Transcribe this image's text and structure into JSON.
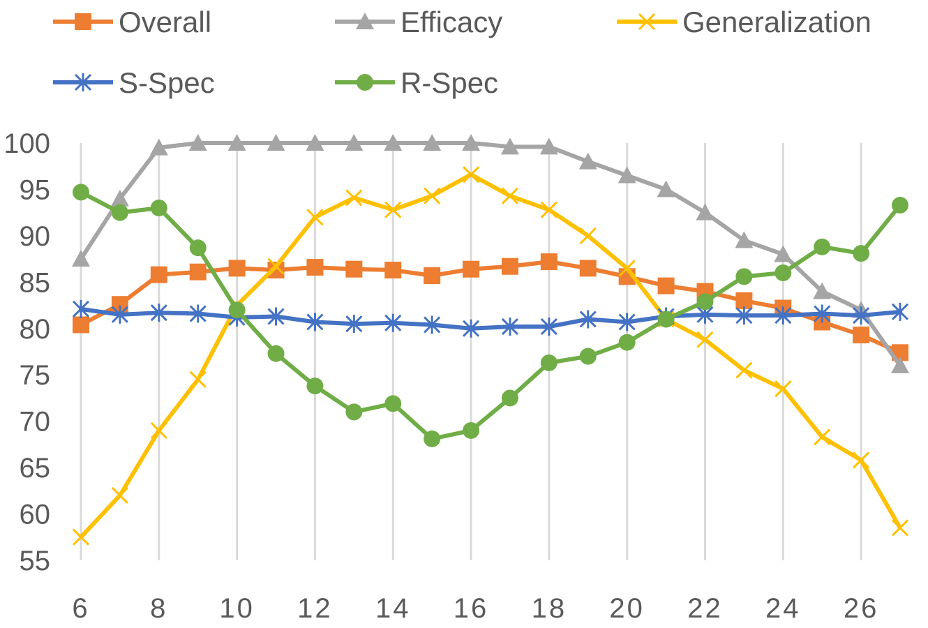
{
  "chart_data": {
    "type": "line",
    "title": "",
    "xlabel": "",
    "ylabel": "",
    "x": [
      6,
      7,
      8,
      9,
      10,
      11,
      12,
      13,
      14,
      15,
      16,
      17,
      18,
      19,
      20,
      21,
      22,
      23,
      24,
      25,
      26,
      27
    ],
    "x_tick_labels": [
      "6",
      "8",
      "10",
      "12",
      "14",
      "16",
      "18",
      "20",
      "22",
      "24",
      "26"
    ],
    "y_tick_labels": [
      "55",
      "60",
      "65",
      "70",
      "75",
      "80",
      "85",
      "90",
      "95",
      "100"
    ],
    "xlim": [
      6,
      27
    ],
    "ylim": [
      55,
      100
    ],
    "grid": "vertical",
    "legend_position": "top",
    "series": [
      {
        "name": "Overall",
        "color": "#ED7D31",
        "marker": "square",
        "values": [
          80.4,
          82.6,
          85.8,
          86.1,
          86.5,
          86.3,
          86.6,
          86.4,
          86.3,
          85.7,
          86.4,
          86.7,
          87.2,
          86.5,
          85.6,
          84.6,
          84.0,
          83.0,
          82.2,
          80.7,
          79.3,
          77.4
        ]
      },
      {
        "name": "Efficacy",
        "color": "#A5A5A5",
        "marker": "triangle",
        "values": [
          87.5,
          94.0,
          99.5,
          100,
          100,
          100,
          100,
          100,
          100,
          100,
          100,
          99.6,
          99.6,
          98.0,
          96.5,
          95.0,
          92.5,
          89.5,
          88.0,
          84.0,
          82.0,
          76.0
        ]
      },
      {
        "name": "Generalization",
        "color": "#FFC000",
        "marker": "x",
        "values": [
          57.5,
          62.0,
          69.0,
          74.5,
          82.5,
          86.7,
          92.0,
          94.1,
          92.8,
          94.3,
          96.6,
          94.3,
          92.8,
          90.0,
          86.5,
          81.0,
          78.8,
          75.5,
          73.5,
          68.3,
          65.8,
          58.5
        ]
      },
      {
        "name": "S-Spec",
        "color": "#4472C4",
        "marker": "asterisk",
        "values": [
          82.1,
          81.5,
          81.7,
          81.6,
          81.2,
          81.3,
          80.7,
          80.5,
          80.6,
          80.4,
          80.0,
          80.2,
          80.2,
          81.0,
          80.7,
          81.3,
          81.5,
          81.4,
          81.4,
          81.6,
          81.4,
          81.8
        ]
      },
      {
        "name": "R-Spec",
        "color": "#70AD47",
        "marker": "circle",
        "values": [
          94.7,
          92.5,
          93.0,
          88.7,
          82.0,
          77.3,
          73.8,
          71.0,
          71.9,
          68.1,
          69.0,
          72.5,
          76.3,
          77.0,
          78.5,
          81.0,
          82.9,
          85.6,
          86.0,
          88.8,
          88.1,
          93.3
        ]
      }
    ]
  }
}
